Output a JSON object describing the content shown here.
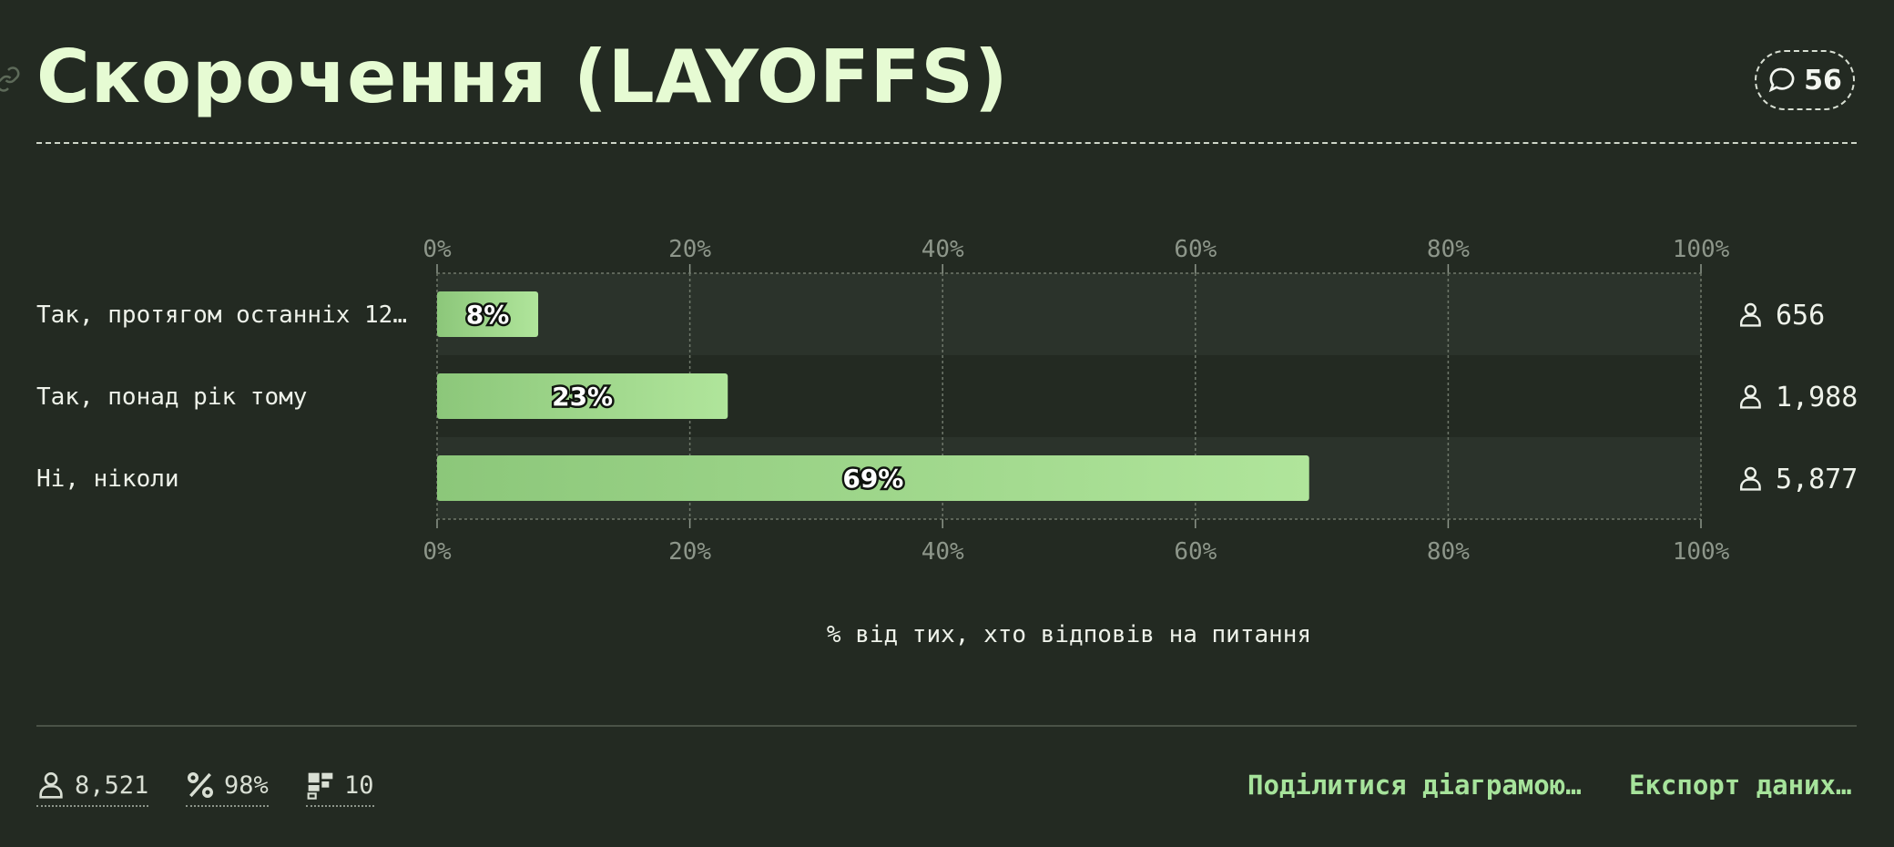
{
  "header": {
    "title": "Скорочення (LAYOFFS)",
    "comment_count": "56"
  },
  "chart_data": {
    "type": "bar",
    "orientation": "horizontal",
    "categories": [
      "Так, протягом останніх 12…",
      "Так, понад рік тому",
      "Ні, ніколи"
    ],
    "values": [
      8,
      23,
      69
    ],
    "value_labels": [
      "8%",
      "23%",
      "69%"
    ],
    "counts": [
      "656",
      "1,988",
      "5,877"
    ],
    "x_ticks": [
      "0%",
      "20%",
      "40%",
      "60%",
      "80%",
      "100%"
    ],
    "xlim": [
      0,
      100
    ],
    "xlabel": "% від тих, хто відповів на питання",
    "grid": true,
    "colors": {
      "bar_start": "#8cc77a",
      "bar_end": "#b0e59b",
      "row_alt": "#2b332b"
    }
  },
  "footer": {
    "respondents": "8,521",
    "response_rate": "98%",
    "question_number": "10",
    "share_label": "Поділитися діаграмою…",
    "export_label": "Експорт даних…"
  },
  "icons": {
    "link": "link-icon",
    "comment": "comment-icon",
    "person": "person-icon",
    "percent": "percent-icon",
    "hierarchy": "hierarchy-icon"
  }
}
